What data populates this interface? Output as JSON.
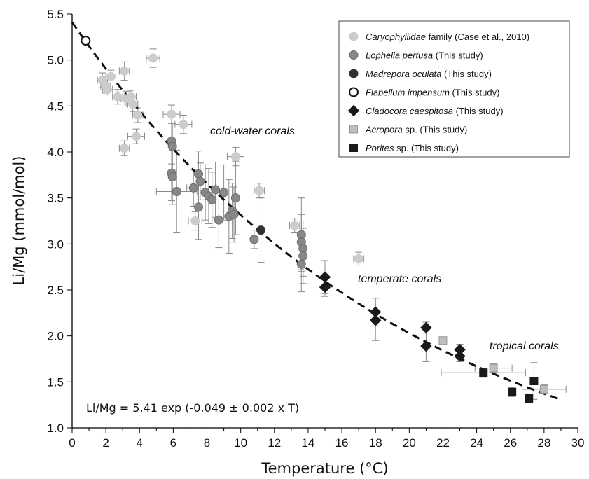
{
  "chart_data": {
    "type": "scatter",
    "xlabel": "Temperature (°C)",
    "ylabel": "Li/Mg (mmol/mol)",
    "xlim": [
      0,
      30
    ],
    "ylim": [
      1.0,
      5.5
    ],
    "xticks": [
      "0",
      "2",
      "4",
      "6",
      "8",
      "10",
      "12",
      "14",
      "16",
      "18",
      "20",
      "22",
      "24",
      "26",
      "28",
      "30"
    ],
    "yticks": [
      "1.0",
      "1.5",
      "2.0",
      "2.5",
      "3.0",
      "3.5",
      "4.0",
      "4.5",
      "5.0",
      "5.5"
    ],
    "grid": false,
    "legend_position": "top-right",
    "annotations": [
      "cold-water corals",
      "temperate corals",
      "tropical corals"
    ],
    "equation": "Li/Mg = 5.41 exp (-0.049 ± 0.002 x T)",
    "fit": {
      "a": 5.41,
      "b": -0.049,
      "x_range": [
        0,
        29
      ]
    },
    "series": [
      {
        "name_italic": "Caryophyllidae",
        "name_rest": " family (Case et al., 2010)",
        "marker": "circle",
        "fill": "#cccccc",
        "stroke": "#cccccc",
        "points": [
          {
            "x": 1.8,
            "y": 4.78,
            "ex": 0.3,
            "ey": 0.08
          },
          {
            "x": 2.0,
            "y": 4.72,
            "ex": 0.3,
            "ey": 0.08
          },
          {
            "x": 2.1,
            "y": 4.68,
            "ex": 0.3,
            "ey": 0.06
          },
          {
            "x": 2.3,
            "y": 4.82,
            "ex": 0.3,
            "ey": 0.07
          },
          {
            "x": 2.7,
            "y": 4.6,
            "ex": 0.3,
            "ey": 0.08
          },
          {
            "x": 3.1,
            "y": 4.88,
            "ex": 0.3,
            "ey": 0.1
          },
          {
            "x": 3.2,
            "y": 4.58,
            "ex": 0.3,
            "ey": 0.08
          },
          {
            "x": 3.5,
            "y": 4.6,
            "ex": 0.3,
            "ey": 0.07
          },
          {
            "x": 3.6,
            "y": 4.52,
            "ex": 0.3,
            "ey": 0.08
          },
          {
            "x": 3.9,
            "y": 4.4,
            "ex": 0.3,
            "ey": 0.08
          },
          {
            "x": 3.1,
            "y": 4.04,
            "ex": 0.3,
            "ey": 0.08
          },
          {
            "x": 3.8,
            "y": 4.17,
            "ex": 0.5,
            "ey": 0.08
          },
          {
            "x": 4.8,
            "y": 5.02,
            "ex": 0.4,
            "ey": 0.1
          },
          {
            "x": 5.9,
            "y": 4.41,
            "ex": 0.5,
            "ey": 0.1
          },
          {
            "x": 6.6,
            "y": 4.3,
            "ex": 0.5,
            "ey": 0.1
          },
          {
            "x": 7.3,
            "y": 3.25,
            "ex": 0.4,
            "ey": 0.1
          },
          {
            "x": 9.7,
            "y": 3.95,
            "ex": 0.5,
            "ey": 0.1
          },
          {
            "x": 11.1,
            "y": 3.58,
            "ex": 0.3,
            "ey": 0.08
          },
          {
            "x": 13.2,
            "y": 3.2,
            "ex": 0.3,
            "ey": 0.08
          },
          {
            "x": 17.0,
            "y": 2.84,
            "ex": 0.3,
            "ey": 0.07
          }
        ]
      },
      {
        "name_italic": "Lophelia pertusa",
        "name_rest": " (This study)",
        "marker": "circle",
        "fill": "#888888",
        "stroke": "#6a6a6a",
        "points": [
          {
            "x": 5.9,
            "y": 4.12,
            "ex": 0,
            "ey": 0.25
          },
          {
            "x": 5.95,
            "y": 4.06,
            "ex": 0,
            "ey": 0.25
          },
          {
            "x": 5.9,
            "y": 3.77,
            "ex": 0,
            "ey": 0.3
          },
          {
            "x": 5.95,
            "y": 3.73,
            "ex": 0,
            "ey": 0.3
          },
          {
            "x": 6.2,
            "y": 3.57,
            "ex": 1.2,
            "ey": 0.45
          },
          {
            "x": 7.2,
            "y": 3.61,
            "ex": 0.4,
            "ey": 0.2
          },
          {
            "x": 7.5,
            "y": 3.76,
            "ex": 0,
            "ey": 0.25
          },
          {
            "x": 7.6,
            "y": 3.68,
            "ex": 0,
            "ey": 0.2
          },
          {
            "x": 7.5,
            "y": 3.4,
            "ex": 0,
            "ey": 0.35
          },
          {
            "x": 7.9,
            "y": 3.56,
            "ex": 0,
            "ey": 0.3
          },
          {
            "x": 8.1,
            "y": 3.52,
            "ex": 0,
            "ey": 0.3
          },
          {
            "x": 8.3,
            "y": 3.48,
            "ex": 0,
            "ey": 0.3
          },
          {
            "x": 8.5,
            "y": 3.59,
            "ex": 0,
            "ey": 0.3
          },
          {
            "x": 8.7,
            "y": 3.26,
            "ex": 0,
            "ey": 0.3
          },
          {
            "x": 9.0,
            "y": 3.56,
            "ex": 0,
            "ey": 0.3
          },
          {
            "x": 9.3,
            "y": 3.3,
            "ex": 0,
            "ey": 0.4
          },
          {
            "x": 9.5,
            "y": 3.36,
            "ex": 0,
            "ey": 0.3
          },
          {
            "x": 9.7,
            "y": 3.5,
            "ex": 0,
            "ey": 0.4
          },
          {
            "x": 9.6,
            "y": 3.32,
            "ex": 0,
            "ey": 0.3
          },
          {
            "x": 10.8,
            "y": 3.05,
            "ex": 0,
            "ey": 0.1
          },
          {
            "x": 13.6,
            "y": 3.1,
            "ex": 0,
            "ey": 0.4
          },
          {
            "x": 13.6,
            "y": 3.02,
            "ex": 0,
            "ey": 0.3
          },
          {
            "x": 13.7,
            "y": 2.95,
            "ex": 0,
            "ey": 0.3
          },
          {
            "x": 13.7,
            "y": 2.87,
            "ex": 0,
            "ey": 0.3
          },
          {
            "x": 13.6,
            "y": 2.78,
            "ex": 0,
            "ey": 0.3
          }
        ]
      },
      {
        "name_italic": "Madrepora oculata",
        "name_rest": " (This study)",
        "marker": "circle",
        "fill": "#303030",
        "stroke": "#303030",
        "points": [
          {
            "x": 11.2,
            "y": 3.15,
            "ex": 0,
            "ey": 0.35
          }
        ]
      },
      {
        "name_italic": "Flabellum impensum",
        "name_rest": " (This study)",
        "marker": "open-circle",
        "fill": "#ffffff",
        "stroke": "#111111",
        "points": [
          {
            "x": 0.8,
            "y": 5.21,
            "ex": 0,
            "ey": 0
          }
        ]
      },
      {
        "name_italic": "Cladocora caespitosa",
        "name_rest": " (This study)",
        "marker": "diamond",
        "fill": "#1a1a1a",
        "stroke": "#1a1a1a",
        "points": [
          {
            "x": 15.0,
            "y": 2.64,
            "ex": 0,
            "ey": 0.18
          },
          {
            "x": 15.0,
            "y": 2.53,
            "ex": 0,
            "ey": 0.1
          },
          {
            "x": 18.0,
            "y": 2.26,
            "ex": 0,
            "ey": 0.15
          },
          {
            "x": 18.0,
            "y": 2.17,
            "ex": 0,
            "ey": 0.22
          },
          {
            "x": 21.0,
            "y": 2.09,
            "ex": 0,
            "ey": 0.06
          },
          {
            "x": 21.0,
            "y": 1.89,
            "ex": 0,
            "ey": 0.17
          },
          {
            "x": 23.0,
            "y": 1.85,
            "ex": 0,
            "ey": 0.06
          },
          {
            "x": 23.0,
            "y": 1.78,
            "ex": 0,
            "ey": 0.06
          }
        ]
      },
      {
        "name_italic": "Acropora",
        "name_rest": " sp. (This study)",
        "marker": "square",
        "fill": "#bdbdbd",
        "stroke": "#999999",
        "points": [
          {
            "x": 22.0,
            "y": 1.95,
            "ex": 0,
            "ey": 0
          },
          {
            "x": 25.0,
            "y": 1.65,
            "ex": 1.1,
            "ey": 0.05
          },
          {
            "x": 28.0,
            "y": 1.42,
            "ex": 1.3,
            "ey": 0.05
          }
        ]
      },
      {
        "name_italic": "Porites",
        "name_rest": " sp. (This study)",
        "marker": "square",
        "fill": "#1a1a1a",
        "stroke": "#1a1a1a",
        "points": [
          {
            "x": 24.4,
            "y": 1.6,
            "ex": 2.5,
            "ey": 0.05
          },
          {
            "x": 26.1,
            "y": 1.39,
            "ex": 0,
            "ey": 0.05
          },
          {
            "x": 27.4,
            "y": 1.51,
            "ex": 0,
            "ey": 0.2
          },
          {
            "x": 27.1,
            "y": 1.32,
            "ex": 0,
            "ey": 0.05
          }
        ]
      }
    ]
  }
}
